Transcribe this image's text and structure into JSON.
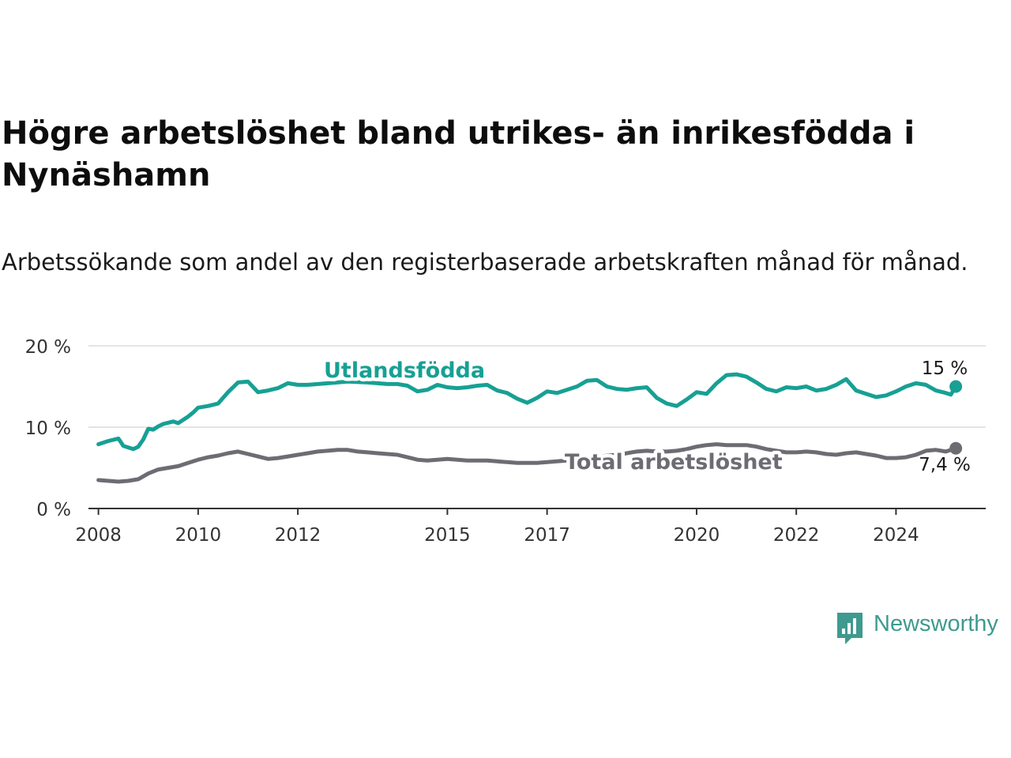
{
  "title": "Högre arbetslöshet bland utrikes- än inrikesfödda i Nynäshamn",
  "subtitle": "Arbetssökande som andel av den registerbaserade arbetskraften månad för månad.",
  "brand": {
    "name": "Newsworthy",
    "color": "#3e9a8f"
  },
  "chart_data": {
    "type": "line",
    "title": "Högre arbetslöshet bland utrikes- än inrikesfödda i Nynäshamn",
    "subtitle": "Arbetssökande som andel av den registerbaserade arbetskraften månad för månad.",
    "xlabel": "",
    "ylabel": "",
    "ylim": [
      0,
      20
    ],
    "yticks": [
      0,
      10,
      20
    ],
    "ytick_labels": [
      "0 %",
      "10 %",
      "20 %"
    ],
    "xlim": [
      2007.8,
      2025.8
    ],
    "xticks": [
      2008,
      2010,
      2012,
      2015,
      2017,
      2020,
      2022,
      2024
    ],
    "xtick_labels": [
      "2008",
      "2010",
      "2012",
      "2015",
      "2017",
      "2020",
      "2022",
      "2024"
    ],
    "grid": "horizontal",
    "legend": "inline labels",
    "series": [
      {
        "name": "Utlandsfödda",
        "color": "#17a094",
        "end_label": "15 %",
        "x": [
          2008.0,
          2008.2,
          2008.4,
          2008.5,
          2008.7,
          2008.8,
          2008.9,
          2009.0,
          2009.1,
          2009.2,
          2009.3,
          2009.5,
          2009.6,
          2009.8,
          2009.9,
          2010.0,
          2010.2,
          2010.4,
          2010.6,
          2010.8,
          2011.0,
          2011.2,
          2011.4,
          2011.6,
          2011.8,
          2012.0,
          2012.2,
          2012.6,
          2013.0,
          2013.4,
          2013.8,
          2014.0,
          2014.2,
          2014.4,
          2014.6,
          2014.8,
          2015.0,
          2015.2,
          2015.4,
          2015.6,
          2015.8,
          2016.0,
          2016.2,
          2016.4,
          2016.6,
          2016.8,
          2017.0,
          2017.2,
          2017.4,
          2017.6,
          2017.8,
          2018.0,
          2018.2,
          2018.4,
          2018.6,
          2018.8,
          2019.0,
          2019.2,
          2019.4,
          2019.6,
          2019.8,
          2020.0,
          2020.2,
          2020.4,
          2020.6,
          2020.8,
          2021.0,
          2021.2,
          2021.4,
          2021.6,
          2021.8,
          2022.0,
          2022.2,
          2022.4,
          2022.6,
          2022.8,
          2023.0,
          2023.2,
          2023.4,
          2023.6,
          2023.8,
          2024.0,
          2024.2,
          2024.4,
          2024.6,
          2024.8,
          2025.0,
          2025.1,
          2025.2
        ],
        "y": [
          7.9,
          8.3,
          8.6,
          7.7,
          7.3,
          7.6,
          8.5,
          9.8,
          9.7,
          10.1,
          10.4,
          10.7,
          10.5,
          11.3,
          11.8,
          12.4,
          12.6,
          12.9,
          14.3,
          15.5,
          15.6,
          14.3,
          14.5,
          14.8,
          15.4,
          15.2,
          15.2,
          15.4,
          15.6,
          15.5,
          15.3,
          15.3,
          15.1,
          14.4,
          14.6,
          15.2,
          14.9,
          14.8,
          14.9,
          15.1,
          15.2,
          14.5,
          14.2,
          13.5,
          13.0,
          13.6,
          14.4,
          14.2,
          14.6,
          15.0,
          15.7,
          15.8,
          15.0,
          14.7,
          14.6,
          14.8,
          14.9,
          13.6,
          12.9,
          12.6,
          13.4,
          14.3,
          14.1,
          15.4,
          16.4,
          16.5,
          16.2,
          15.5,
          14.7,
          14.4,
          14.9,
          14.8,
          15.0,
          14.5,
          14.7,
          15.2,
          15.9,
          14.5,
          14.1,
          13.7,
          13.9,
          14.4,
          15.0,
          15.4,
          15.2,
          14.5,
          14.2,
          14.0,
          15.0
        ]
      },
      {
        "name": "Total arbetslöshet",
        "color": "#6e6c73",
        "end_label": "7,4 %",
        "x": [
          2008.0,
          2008.2,
          2008.4,
          2008.6,
          2008.8,
          2009.0,
          2009.2,
          2009.4,
          2009.6,
          2009.8,
          2010.0,
          2010.2,
          2010.4,
          2010.6,
          2010.8,
          2011.0,
          2011.2,
          2011.4,
          2011.6,
          2011.8,
          2012.0,
          2012.2,
          2012.4,
          2012.6,
          2012.8,
          2013.0,
          2013.2,
          2013.4,
          2013.6,
          2013.8,
          2014.0,
          2014.2,
          2014.4,
          2014.6,
          2014.8,
          2015.0,
          2015.2,
          2015.4,
          2015.6,
          2015.8,
          2016.0,
          2016.2,
          2016.4,
          2016.6,
          2016.8,
          2017.0,
          2017.2,
          2017.4,
          2017.6,
          2017.8,
          2018.0,
          2018.2,
          2018.4,
          2018.6,
          2018.8,
          2019.0,
          2019.2,
          2019.4,
          2019.6,
          2019.8,
          2020.0,
          2020.2,
          2020.4,
          2020.6,
          2020.8,
          2021.0,
          2021.2,
          2021.4,
          2021.6,
          2021.8,
          2022.0,
          2022.2,
          2022.4,
          2022.6,
          2022.8,
          2023.0,
          2023.2,
          2023.4,
          2023.6,
          2023.8,
          2024.0,
          2024.2,
          2024.4,
          2024.6,
          2024.8,
          2025.0,
          2025.2
        ],
        "y": [
          3.5,
          3.4,
          3.3,
          3.4,
          3.6,
          4.3,
          4.8,
          5.0,
          5.2,
          5.6,
          6.0,
          6.3,
          6.5,
          6.8,
          7.0,
          6.7,
          6.4,
          6.1,
          6.2,
          6.4,
          6.6,
          6.8,
          7.0,
          7.1,
          7.2,
          7.2,
          7.0,
          6.9,
          6.8,
          6.7,
          6.6,
          6.3,
          6.0,
          5.9,
          6.0,
          6.1,
          6.0,
          5.9,
          5.9,
          5.9,
          5.8,
          5.7,
          5.6,
          5.6,
          5.6,
          5.7,
          5.8,
          5.9,
          6.0,
          6.1,
          6.3,
          6.5,
          6.6,
          6.8,
          7.0,
          7.1,
          7.0,
          7.0,
          7.1,
          7.3,
          7.6,
          7.8,
          7.9,
          7.8,
          7.8,
          7.8,
          7.6,
          7.3,
          7.1,
          6.9,
          6.9,
          7.0,
          6.9,
          6.7,
          6.6,
          6.8,
          6.9,
          6.7,
          6.5,
          6.2,
          6.2,
          6.3,
          6.6,
          7.1,
          7.2,
          7.0,
          7.4
        ]
      }
    ]
  }
}
